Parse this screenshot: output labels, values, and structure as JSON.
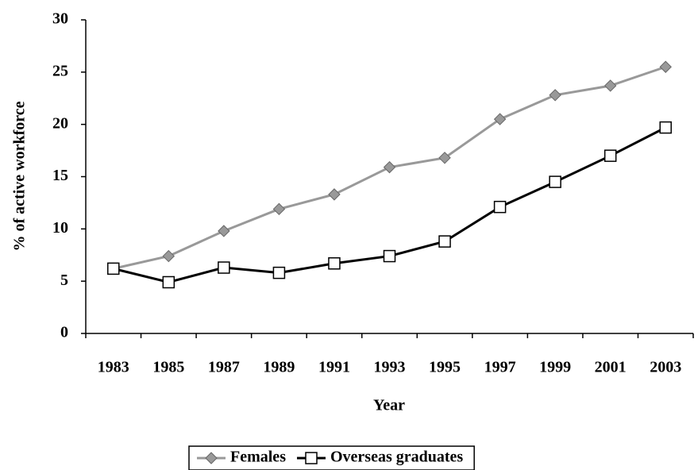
{
  "chart_data": {
    "type": "line",
    "x_label": "Year",
    "y_label": "% of active workforce",
    "categories": [
      "1983",
      "1985",
      "1987",
      "1989",
      "1991",
      "1993",
      "1995",
      "1997",
      "1999",
      "2001",
      "2003"
    ],
    "series": [
      {
        "name": "Females",
        "color": "#999999",
        "marker": "diamond",
        "values": [
          6.2,
          7.4,
          9.8,
          11.9,
          13.3,
          15.9,
          16.8,
          20.5,
          22.8,
          23.7,
          25.5
        ]
      },
      {
        "name": "Overseas graduates",
        "color": "#000000",
        "marker": "square",
        "values": [
          6.2,
          4.9,
          6.3,
          5.8,
          6.7,
          7.4,
          8.8,
          12.1,
          14.5,
          17.0,
          19.7
        ]
      }
    ],
    "ylim": [
      0,
      30
    ],
    "yticks": [
      0,
      5,
      10,
      15,
      20,
      25,
      30
    ],
    "grid": false,
    "legend": "bottom"
  }
}
